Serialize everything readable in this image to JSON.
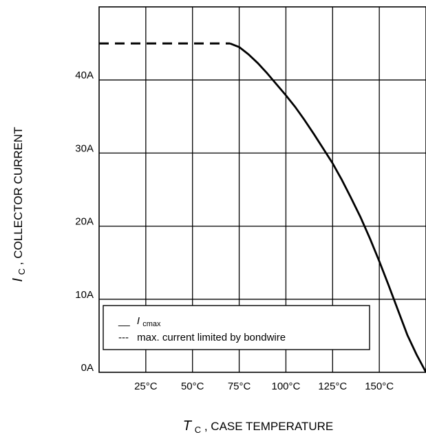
{
  "chart_data": {
    "type": "line",
    "xlabel": {
      "symbol": "T",
      "subscript": "C",
      "text": ", CASE TEMPERATURE"
    },
    "ylabel": {
      "symbol": "I",
      "subscript": "C",
      "text": ", COLLECTOR CURRENT"
    },
    "x_ticks": [
      "25°C",
      "50°C",
      "75°C",
      "100°C",
      "125°C",
      "150°C"
    ],
    "x_tick_values": [
      25,
      50,
      75,
      100,
      125,
      150
    ],
    "y_ticks": [
      "0A",
      "10A",
      "20A",
      "30A",
      "40A"
    ],
    "y_tick_values": [
      0,
      10,
      20,
      30,
      40
    ],
    "xlim": [
      0,
      175
    ],
    "ylim": [
      0,
      50
    ],
    "grid": true,
    "legend": {
      "position": "bottom-left",
      "entries": [
        {
          "marker": "__",
          "symbol": "I",
          "subscript": "cmax",
          "text": ""
        },
        {
          "marker": "---",
          "symbol": "",
          "subscript": "",
          "text": "max. current limited by bondwire"
        }
      ]
    },
    "series": [
      {
        "style": "solid",
        "x": [
          70,
          75,
          80,
          85,
          90,
          95,
          100,
          105,
          110,
          115,
          120,
          125,
          130,
          135,
          140,
          145,
          150,
          155,
          160,
          165,
          170,
          175
        ],
        "y": [
          45,
          44.5,
          43.5,
          42.3,
          40.9,
          39.4,
          37.9,
          36.3,
          34.5,
          32.6,
          30.6,
          28.6,
          26.3,
          23.8,
          21.2,
          18.3,
          15.2,
          11.9,
          8.5,
          5.1,
          2.4,
          0
        ]
      },
      {
        "style": "dashed",
        "x": [
          0,
          70
        ],
        "y": [
          45,
          45
        ]
      }
    ]
  }
}
